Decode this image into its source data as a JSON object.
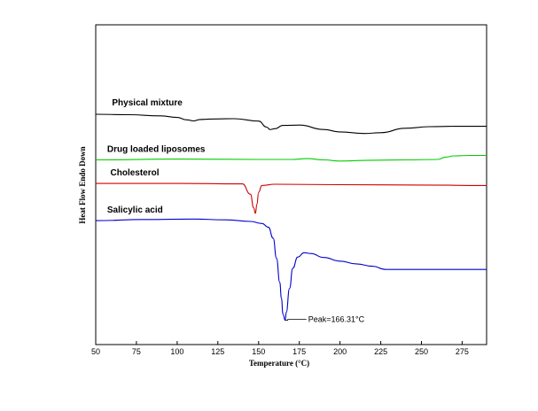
{
  "chart_data": {
    "type": "line",
    "title": "",
    "xlabel": "Temperature (°C)",
    "ylabel": "Heat Flow Endo Down",
    "xlim": [
      50,
      290
    ],
    "x_ticks": [
      50,
      75,
      100,
      125,
      150,
      175,
      200,
      225,
      250,
      275
    ],
    "x_tick_labels": [
      "50",
      "75",
      "100",
      "125",
      "150",
      "175",
      "200",
      "225",
      "250",
      "275"
    ],
    "grid": false,
    "legend": "none",
    "series": [
      {
        "name": "Physical mixture",
        "color": "#000000",
        "x": [
          50,
          70,
          90,
          100,
          106,
          110,
          114,
          120,
          135,
          150,
          155,
          157,
          160,
          165,
          175,
          190,
          200,
          215,
          225,
          240,
          255,
          270,
          290
        ],
        "y": [
          0.0,
          -0.2,
          -0.8,
          -1.6,
          -2.8,
          -3.3,
          -2.6,
          -2.4,
          -2.2,
          -3.4,
          -6.4,
          -7.6,
          -7.2,
          -5.6,
          -5.4,
          -7.6,
          -8.8,
          -9.6,
          -9.2,
          -7.0,
          -6.2,
          -6.0,
          -6.0
        ]
      },
      {
        "name": "Drug loaded liposomes",
        "color": "#00cc00",
        "x": [
          50,
          100,
          150,
          170,
          180,
          190,
          200,
          220,
          240,
          260,
          265,
          270,
          280,
          290
        ],
        "y": [
          -22.8,
          -22.4,
          -22.6,
          -22.6,
          -22.2,
          -22.8,
          -23.4,
          -23.0,
          -22.8,
          -22.6,
          -21.4,
          -20.8,
          -20.6,
          -20.6
        ]
      },
      {
        "name": "Cholesterol",
        "color": "#cc0000",
        "x": [
          50,
          100,
          140,
          145,
          147,
          148,
          149,
          150,
          152,
          160,
          200,
          250,
          290
        ],
        "y": [
          -34.6,
          -34.6,
          -34.8,
          -40.0,
          -46.8,
          -49.6,
          -45.0,
          -39.0,
          -35.6,
          -35.0,
          -35.2,
          -35.4,
          -35.6
        ]
      },
      {
        "name": "Salicylic acid",
        "color": "#0000cc",
        "x": [
          50,
          80,
          110,
          130,
          145,
          152,
          156,
          159,
          161,
          163,
          164,
          165,
          166.31,
          167,
          169,
          171,
          174,
          178,
          182,
          190,
          200,
          210,
          220,
          228,
          240,
          260,
          290
        ],
        "y": [
          -53.2,
          -52.6,
          -52.4,
          -52.8,
          -53.6,
          -54.6,
          -56.4,
          -62.0,
          -72.0,
          -84.0,
          -92.0,
          -100.0,
          -103.0,
          -99.0,
          -87.0,
          -77.0,
          -71.4,
          -69.2,
          -69.6,
          -71.6,
          -73.4,
          -74.8,
          -76.0,
          -77.6,
          -77.6,
          -77.6,
          -77.6
        ]
      }
    ],
    "annotations": [
      {
        "text": "Peak=166.31°C",
        "x": 166.31,
        "y": -103.0
      }
    ]
  }
}
